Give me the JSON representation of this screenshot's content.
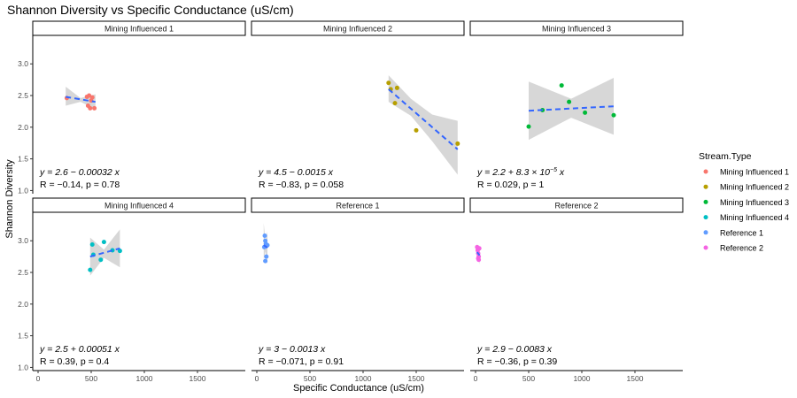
{
  "chart_data": {
    "type": "scatter",
    "title": "Shannon Diversity vs Specific Conductance (uS/cm)",
    "xlabel": "Specific Conductance (uS/cm)",
    "ylabel": "Shannon Diversity",
    "xlim": [
      -50,
      1950
    ],
    "ylim": [
      0.95,
      3.45
    ],
    "x_ticks": [
      0,
      500,
      1000,
      1500
    ],
    "y_ticks": [
      1.0,
      1.5,
      2.0,
      2.5,
      3.0
    ],
    "x_tick_labels": [
      "0",
      "500",
      "1000",
      "1500"
    ],
    "y_tick_labels": [
      "1.0",
      "1.5",
      "2.0",
      "2.5",
      "3.0"
    ],
    "grid": false,
    "legend": {
      "title": "Stream.Type",
      "placement": "right",
      "entries": [
        "Mining Influenced 1",
        "Mining Influenced 2",
        "Mining Influenced 3",
        "Mining Influenced 4",
        "Reference 1",
        "Reference 2"
      ]
    },
    "colors": [
      "#F8766D",
      "#B79F00",
      "#00BA38",
      "#00BFC4",
      "#619CFF",
      "#F564E3"
    ],
    "fit_line_color": "#3366FF",
    "ci_color": "#D3D3D3",
    "panels": [
      {
        "name": "Mining Influenced 1",
        "points": [
          [
            270,
            2.46
          ],
          [
            460,
            2.48
          ],
          [
            480,
            2.5
          ],
          [
            510,
            2.47
          ],
          [
            470,
            2.34
          ],
          [
            490,
            2.3
          ],
          [
            530,
            2.3
          ],
          [
            500,
            2.42
          ]
        ],
        "fit": {
          "x": [
            260,
            540
          ],
          "y": [
            2.48,
            2.4
          ]
        },
        "ci": {
          "x": [
            260,
            400,
            540
          ],
          "lower": [
            2.34,
            2.4,
            2.28
          ],
          "upper": [
            2.64,
            2.46,
            2.52
          ]
        },
        "eq_line1": "y = 2.6 − 0.00032 x",
        "eq_line2": "R = −0.14, p = 0.78"
      },
      {
        "name": "Mining Influenced 2",
        "points": [
          [
            1240,
            2.7
          ],
          [
            1260,
            2.6
          ],
          [
            1320,
            2.62
          ],
          [
            1300,
            2.38
          ],
          [
            1500,
            1.95
          ],
          [
            1890,
            1.74
          ]
        ],
        "fit": {
          "x": [
            1240,
            1890
          ],
          "y": [
            2.6,
            1.65
          ]
        },
        "ci": {
          "x": [
            1240,
            1450,
            1650,
            1890
          ],
          "lower": [
            2.4,
            2.18,
            1.78,
            1.25
          ],
          "upper": [
            2.82,
            2.45,
            2.2,
            2.1
          ]
        },
        "eq_line1": "y = 4.5 − 0.0015 x",
        "eq_line2": "R = −0.83, p = 0.058"
      },
      {
        "name": "Mining Influenced 3",
        "points": [
          [
            500,
            2.01
          ],
          [
            630,
            2.27
          ],
          [
            810,
            2.66
          ],
          [
            880,
            2.4
          ],
          [
            1030,
            2.23
          ],
          [
            1300,
            2.19
          ]
        ],
        "fit": {
          "x": [
            500,
            1300
          ],
          "y": [
            2.26,
            2.33
          ]
        },
        "ci": {
          "x": [
            500,
            900,
            1300
          ],
          "lower": [
            1.8,
            2.15,
            1.88
          ],
          "upper": [
            2.72,
            2.45,
            2.78
          ]
        },
        "eq_line1": "y = 2.2 + 8.3 × 10",
        "eq_line1_exp": "−5",
        "eq_line1_tail": " x",
        "eq_line2": "R = 0.029, p = 1"
      },
      {
        "name": "Mining Influenced 4",
        "points": [
          [
            490,
            2.54
          ],
          [
            510,
            2.94
          ],
          [
            520,
            2.78
          ],
          [
            590,
            2.7
          ],
          [
            620,
            2.98
          ],
          [
            700,
            2.85
          ],
          [
            770,
            2.84
          ]
        ],
        "fit": {
          "x": [
            490,
            770
          ],
          "y": [
            2.75,
            2.88
          ]
        },
        "ci": {
          "x": [
            490,
            620,
            770
          ],
          "lower": [
            2.45,
            2.73,
            2.58
          ],
          "upper": [
            3.05,
            2.86,
            3.18
          ]
        },
        "eq_line1": "y = 2.5 + 0.00051 x",
        "eq_line2": "R = 0.39, p = 0.4"
      },
      {
        "name": "Reference 1",
        "points": [
          [
            70,
            2.9
          ],
          [
            75,
            3.08
          ],
          [
            80,
            3.0
          ],
          [
            85,
            2.95
          ],
          [
            90,
            2.75
          ],
          [
            80,
            2.68
          ],
          [
            90,
            2.92
          ],
          [
            100,
            2.93
          ]
        ],
        "fit": {
          "x": [
            65,
            100
          ],
          "y": [
            2.93,
            2.89
          ]
        },
        "ci": {
          "x": [
            65,
            82,
            100
          ],
          "lower": [
            2.7,
            2.83,
            2.63
          ],
          "upper": [
            3.28,
            2.98,
            3.15
          ]
        },
        "eq_line1": "y = 3 − 0.0013 x",
        "eq_line2": "R = −0.071, p = 0.91"
      },
      {
        "name": "Reference 2",
        "points": [
          [
            15,
            2.9
          ],
          [
            20,
            2.85
          ],
          [
            25,
            2.8
          ],
          [
            30,
            2.75
          ],
          [
            30,
            2.7
          ],
          [
            35,
            2.88
          ],
          [
            25,
            2.72
          ]
        ],
        "fit": {
          "x": [
            15,
            38
          ],
          "y": [
            2.82,
            2.77
          ]
        },
        "ci": {
          "x": [
            15,
            27,
            38
          ],
          "lower": [
            2.68,
            2.74,
            2.62
          ],
          "upper": [
            2.96,
            2.84,
            2.92
          ]
        },
        "eq_line1": "y = 2.9 − 0.0083 x",
        "eq_line2": "R = −0.36, p = 0.39"
      }
    ]
  }
}
